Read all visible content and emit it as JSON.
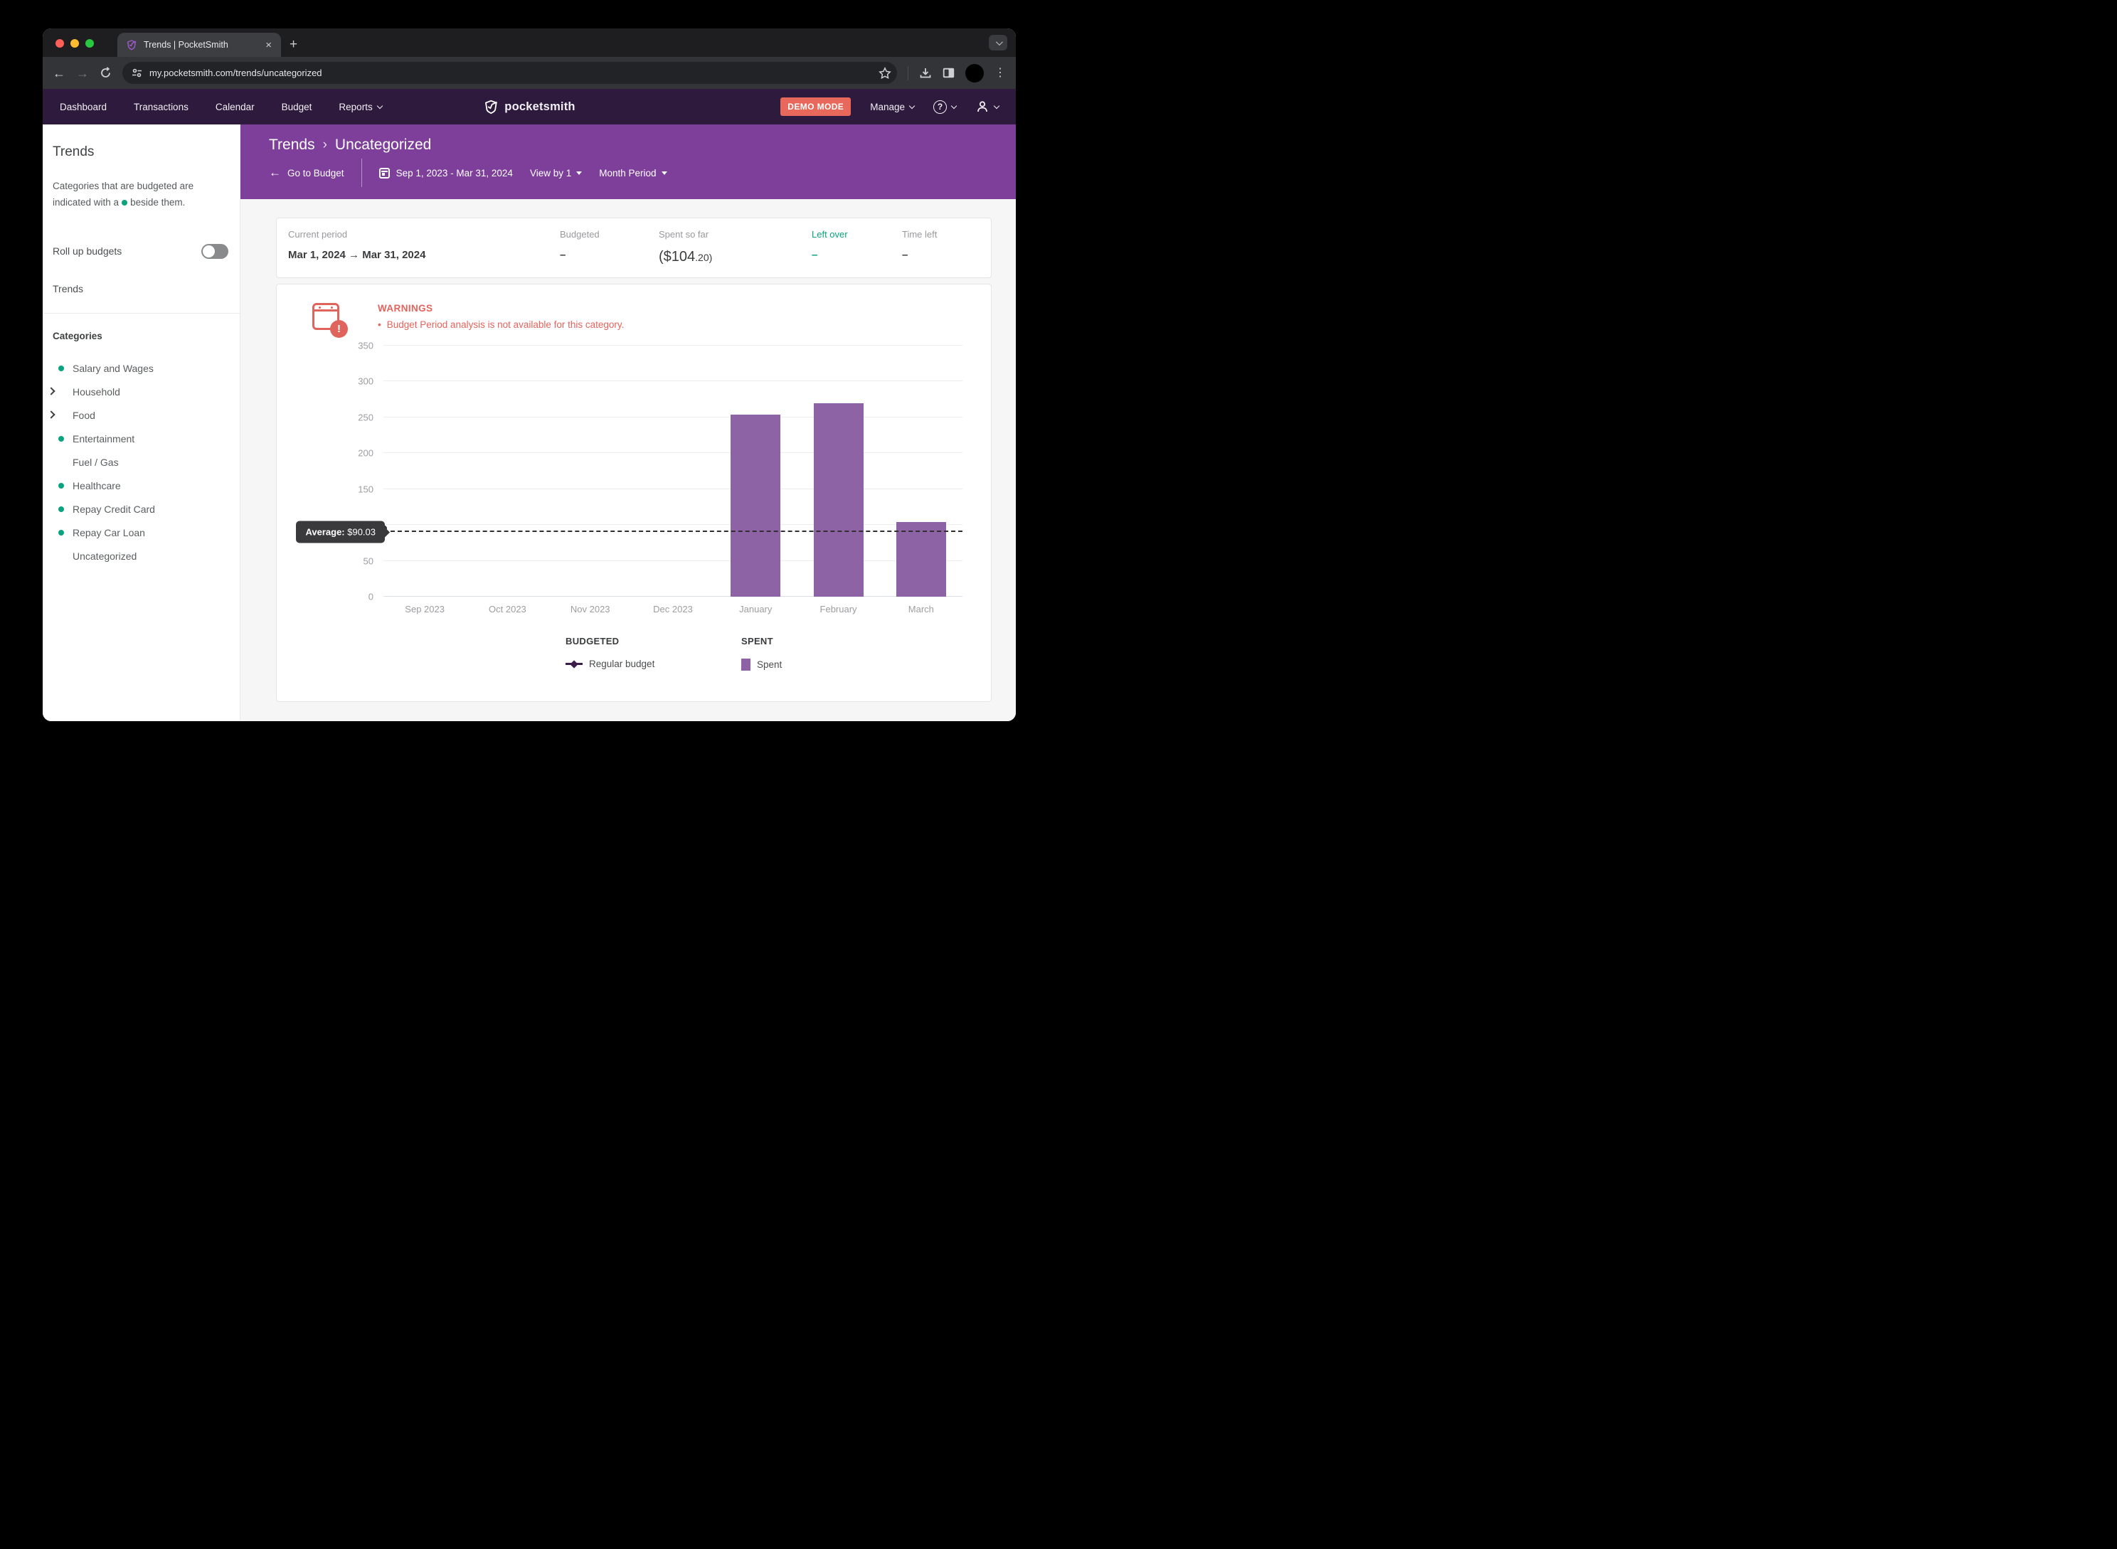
{
  "browser": {
    "tab_title": "Trends | PocketSmith",
    "url": "my.pocketsmith.com/trends/uncategorized"
  },
  "nav": {
    "items": [
      {
        "label": "Dashboard",
        "chevron": false
      },
      {
        "label": "Transactions",
        "chevron": false
      },
      {
        "label": "Calendar",
        "chevron": false
      },
      {
        "label": "Budget",
        "chevron": false
      },
      {
        "label": "Reports",
        "chevron": true
      }
    ],
    "logo_text": "pocketsmith",
    "demo_badge": "DEMO MODE",
    "manage_label": "Manage"
  },
  "header": {
    "breadcrumb": {
      "root": "Trends",
      "separator": "›",
      "current": "Uncategorized"
    },
    "back_link": "Go to Budget",
    "date_range": "Sep 1, 2023 - Mar 31, 2024",
    "view_by": "View by 1",
    "period": "Month Period"
  },
  "sidebar": {
    "title": "Trends",
    "description_before": "Categories that are budgeted are indicated with a",
    "description_after": "beside them.",
    "rollup_label": "Roll up budgets",
    "rollup_state": "off",
    "trends_link": "Trends",
    "categories_heading": "Categories",
    "categories": [
      {
        "label": "Salary and Wages",
        "budgeted": true,
        "expandable": false
      },
      {
        "label": "Household",
        "budgeted": false,
        "expandable": true
      },
      {
        "label": "Food",
        "budgeted": false,
        "expandable": true
      },
      {
        "label": "Entertainment",
        "budgeted": true,
        "expandable": false
      },
      {
        "label": "Fuel / Gas",
        "budgeted": false,
        "expandable": false
      },
      {
        "label": "Healthcare",
        "budgeted": true,
        "expandable": false
      },
      {
        "label": "Repay Credit Card",
        "budgeted": true,
        "expandable": false
      },
      {
        "label": "Repay Car Loan",
        "budgeted": true,
        "expandable": false
      },
      {
        "label": "Uncategorized",
        "budgeted": false,
        "expandable": false
      }
    ]
  },
  "summary": {
    "current_period_label": "Current period",
    "current_period_value": "Mar 1, 2024 → Mar 31, 2024",
    "budgeted_label": "Budgeted",
    "budgeted_value": "–",
    "spent_label": "Spent so far",
    "spent_value_main": "($104",
    "spent_value_cents": ".20)",
    "leftover_label": "Left over",
    "leftover_value": "–",
    "timeleft_label": "Time left",
    "timeleft_value": "–"
  },
  "warnings": {
    "heading": "WARNINGS",
    "items": [
      "Budget Period analysis is not available for this category."
    ]
  },
  "chart_data": {
    "type": "bar",
    "categories": [
      "Sep 2023",
      "Oct 2023",
      "Nov 2023",
      "Dec 2023",
      "January",
      "February",
      "March"
    ],
    "series": [
      {
        "name": "Spent",
        "color": "#8d63a6",
        "values": [
          0,
          0,
          0,
          0,
          254,
          270,
          104.2
        ]
      }
    ],
    "average_line": {
      "label_bold": "Average:",
      "label_value": "$90.03",
      "value": 90.03
    },
    "ylim": [
      0,
      350
    ],
    "yticks": [
      0,
      50,
      100,
      150,
      200,
      250,
      300,
      350
    ],
    "grid": true,
    "legend_groups": [
      {
        "heading": "BUDGETED",
        "items": [
          {
            "label": "Regular budget",
            "marker": "diamond-line",
            "color": "#3a1d49"
          }
        ]
      },
      {
        "heading": "SPENT",
        "items": [
          {
            "label": "Spent",
            "marker": "square",
            "color": "#8d63a6"
          }
        ]
      }
    ]
  },
  "colors": {
    "header_purple": "#7d3f9a",
    "nav_purple": "#2d1a3c",
    "bar_purple": "#8d63a6",
    "dark_purple": "#3a1d49",
    "coral": "#e4635c",
    "demo_badge_bg": "#e8695c",
    "green": "#0aa37f"
  }
}
